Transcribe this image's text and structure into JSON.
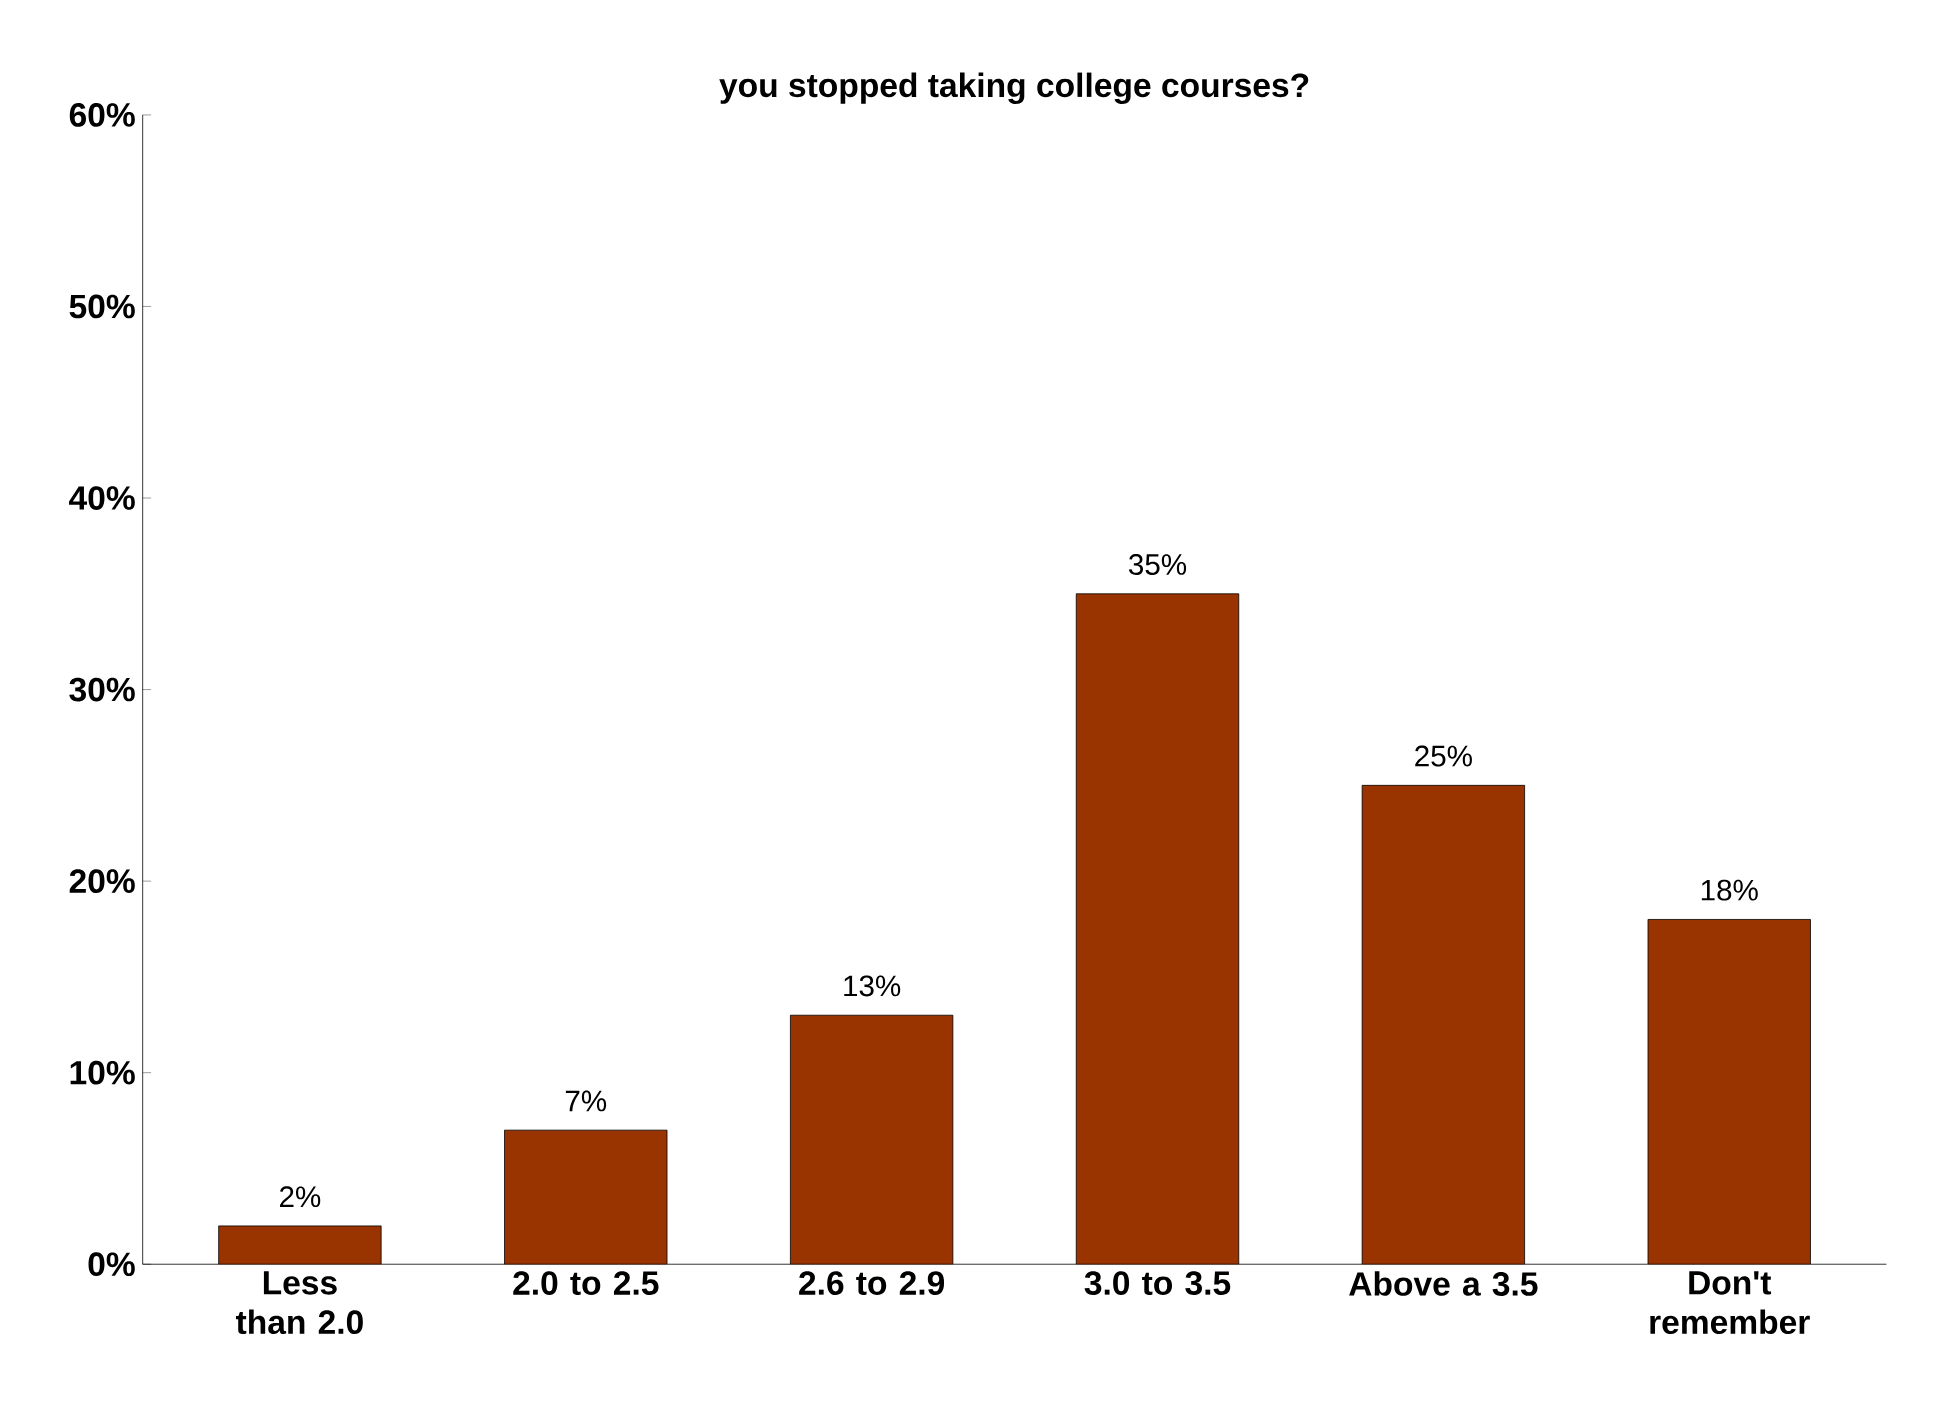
{
  "chart_data": {
    "type": "bar",
    "title": "you stopped taking college courses?",
    "categories": [
      "Less than 2.0",
      "2.0 to 2.5",
      "2.6 to 2.9",
      "3.0 to 3.5",
      "Above a 3.5",
      "Don't remember"
    ],
    "values": [
      2,
      7,
      13,
      35,
      25,
      18
    ],
    "value_labels": [
      "2%",
      "7%",
      "13%",
      "35%",
      "25%",
      "18%"
    ],
    "color": "#993300",
    "ylim": [
      0,
      60
    ],
    "yticks": [
      {
        "value": 0,
        "label": "0%"
      },
      {
        "value": 10,
        "label": "10%"
      },
      {
        "value": 20,
        "label": "20%"
      },
      {
        "value": 30,
        "label": "30%"
      },
      {
        "value": 40,
        "label": "40%"
      },
      {
        "value": 50,
        "label": "50%"
      },
      {
        "value": 60,
        "label": "60%"
      }
    ],
    "grid": false
  }
}
